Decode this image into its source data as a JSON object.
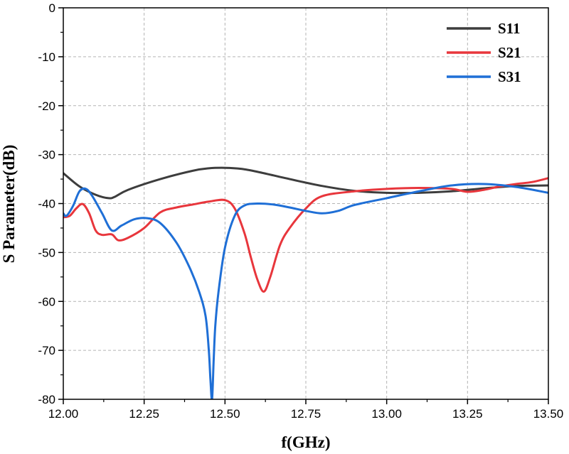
{
  "chart_data": {
    "type": "line",
    "title": "",
    "xlabel": "f(GHz)",
    "ylabel": "S Parameter(dB)",
    "xlim": [
      12.0,
      13.5
    ],
    "ylim": [
      -80,
      0
    ],
    "xticks": [
      12.0,
      12.25,
      12.5,
      12.75,
      13.0,
      13.25,
      13.5
    ],
    "xtick_labels": [
      "12.00",
      "12.25",
      "12.50",
      "12.75",
      "13.00",
      "13.25",
      "13.50"
    ],
    "yticks": [
      0,
      -10,
      -20,
      -30,
      -40,
      -50,
      -60,
      -70,
      -80
    ],
    "ytick_labels": [
      "0",
      "-10",
      "-20",
      "-30",
      "-40",
      "-50",
      "-60",
      "-70",
      "-80"
    ],
    "grid": true,
    "legend_position": "top-right",
    "series": [
      {
        "name": "S11",
        "color": "#3d3d3d",
        "x": [
          12.0,
          12.05,
          12.1,
          12.14,
          12.16,
          12.2,
          12.3,
          12.4,
          12.45,
          12.5,
          12.55,
          12.6,
          12.7,
          12.8,
          12.9,
          13.0,
          13.1,
          13.2,
          13.3,
          13.4,
          13.5
        ],
        "y": [
          -33.8,
          -36.5,
          -38.2,
          -38.9,
          -38.6,
          -37.2,
          -35.0,
          -33.3,
          -32.8,
          -32.7,
          -32.9,
          -33.5,
          -35.0,
          -36.4,
          -37.4,
          -37.8,
          -37.8,
          -37.5,
          -36.9,
          -36.4,
          -36.3
        ]
      },
      {
        "name": "S21",
        "color": "#e8363c",
        "x": [
          12.0,
          12.02,
          12.04,
          12.06,
          12.08,
          12.1,
          12.12,
          12.15,
          12.17,
          12.2,
          12.25,
          12.3,
          12.35,
          12.4,
          12.45,
          12.5,
          12.53,
          12.56,
          12.58,
          12.6,
          12.62,
          12.64,
          12.67,
          12.7,
          12.75,
          12.8,
          12.9,
          13.0,
          13.1,
          13.2,
          13.25,
          13.3,
          13.35,
          13.4,
          13.45,
          13.5
        ],
        "y": [
          -42.8,
          -42.5,
          -41.0,
          -40.1,
          -42.0,
          -45.5,
          -46.4,
          -46.3,
          -47.5,
          -47.0,
          -45.0,
          -41.8,
          -40.8,
          -40.2,
          -39.6,
          -39.3,
          -41.0,
          -46.0,
          -51.0,
          -55.5,
          -58.0,
          -55.0,
          -48.5,
          -45.0,
          -41.0,
          -38.5,
          -37.5,
          -37.0,
          -36.8,
          -37.0,
          -37.6,
          -37.2,
          -36.5,
          -36.0,
          -35.6,
          -34.8
        ]
      },
      {
        "name": "S31",
        "color": "#1f6fd6",
        "x": [
          12.0,
          12.01,
          12.03,
          12.05,
          12.07,
          12.09,
          12.12,
          12.15,
          12.18,
          12.22,
          12.26,
          12.3,
          12.35,
          12.39,
          12.42,
          12.44,
          12.45,
          12.455,
          12.46,
          12.465,
          12.47,
          12.48,
          12.5,
          12.53,
          12.56,
          12.6,
          12.65,
          12.7,
          12.75,
          12.8,
          12.85,
          12.9,
          13.0,
          13.1,
          13.2,
          13.3,
          13.4,
          13.5
        ],
        "y": [
          -42.0,
          -42.5,
          -40.5,
          -37.5,
          -37.0,
          -38.5,
          -42.0,
          -45.5,
          -44.5,
          -43.2,
          -43.0,
          -44.0,
          -48.0,
          -53.0,
          -58.0,
          -63.0,
          -70.0,
          -76.0,
          -80.0,
          -72.0,
          -65.0,
          -58.0,
          -49.0,
          -42.5,
          -40.4,
          -40.0,
          -40.2,
          -40.8,
          -41.5,
          -42.0,
          -41.5,
          -40.3,
          -38.9,
          -37.5,
          -36.3,
          -36.0,
          -36.6,
          -37.8
        ]
      }
    ]
  }
}
